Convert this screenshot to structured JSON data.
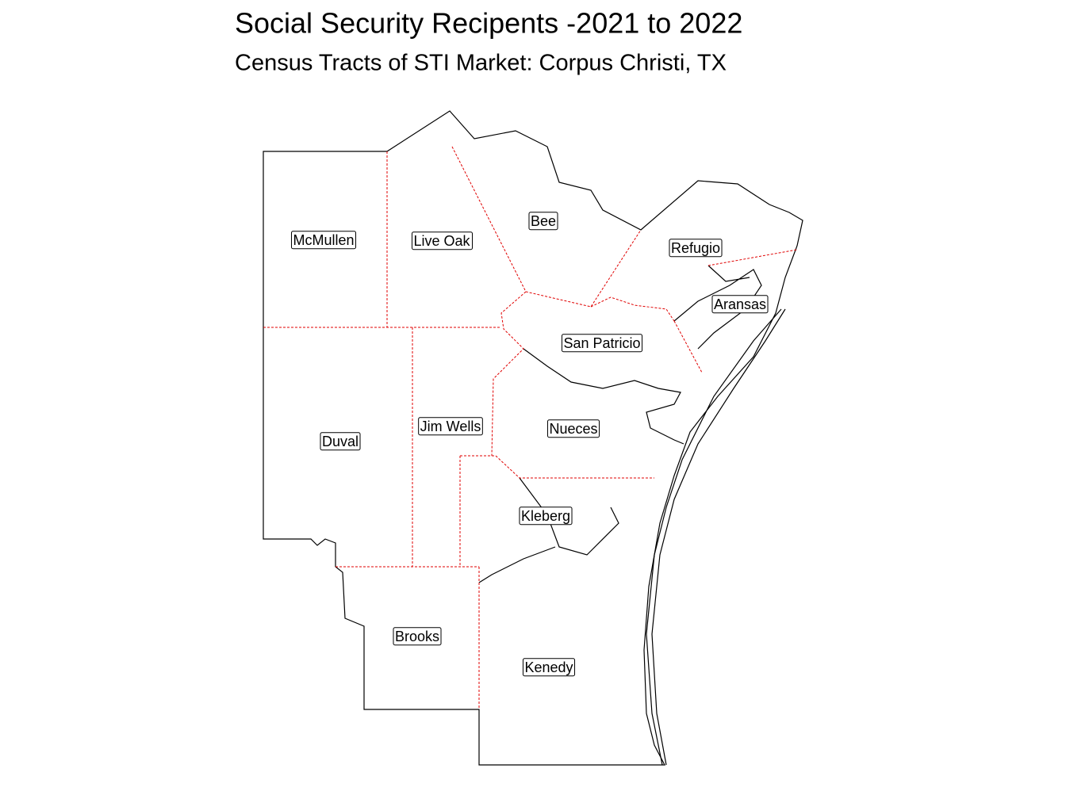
{
  "title": "Social Security Recipents -2021 to 2022",
  "subtitle": "Census Tracts of STI Market: Corpus Christi, TX",
  "counties": [
    {
      "label": "McMullen"
    },
    {
      "label": "Live Oak"
    },
    {
      "label": "Bee"
    },
    {
      "label": "Refugio"
    },
    {
      "label": "Aransas"
    },
    {
      "label": "San Patricio"
    },
    {
      "label": "Jim Wells"
    },
    {
      "label": "Nueces"
    },
    {
      "label": "Duval"
    },
    {
      "label": "Kleberg"
    },
    {
      "label": "Brooks"
    },
    {
      "label": "Kenedy"
    }
  ]
}
